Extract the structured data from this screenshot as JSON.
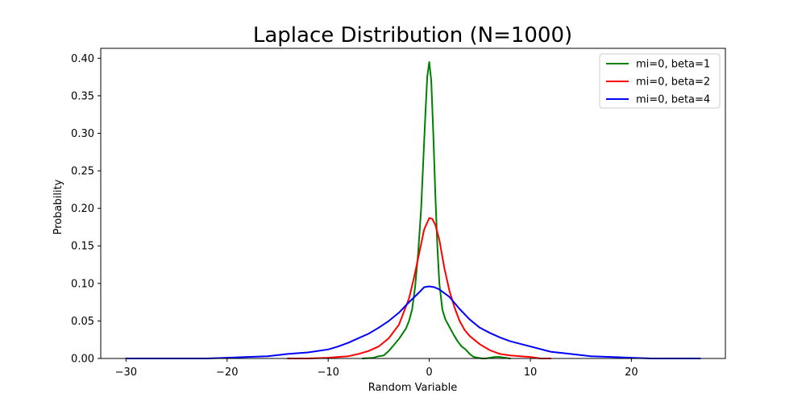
{
  "chart_data": {
    "type": "line",
    "title": "Laplace Distribution (N=1000)",
    "xlabel": "Random Variable",
    "ylabel": "Probability",
    "xlim": [
      -32.5,
      29.3
    ],
    "ylim": [
      0,
      0.4132
    ],
    "xticks": [
      -30,
      -20,
      -10,
      0,
      10,
      20
    ],
    "xtick_labels": [
      "−30",
      "−20",
      "−10",
      "0",
      "10",
      "20"
    ],
    "yticks": [
      0,
      0.05,
      0.1,
      0.15,
      0.2,
      0.25,
      0.3,
      0.35,
      0.4
    ],
    "ytick_labels": [
      "0.00",
      "0.05",
      "0.10",
      "0.15",
      "0.20",
      "0.25",
      "0.30",
      "0.35",
      "0.40"
    ],
    "legend_position": "top-right",
    "grid": false,
    "series": [
      {
        "name": "mi=0, beta=1",
        "color": "#008000",
        "x": [
          -6.6,
          -5.5,
          -5.0,
          -4.5,
          -4.0,
          -3.5,
          -3.0,
          -2.6,
          -2.3,
          -2.0,
          -1.7,
          -1.4,
          -1.1,
          -0.8,
          -0.6,
          -0.4,
          -0.2,
          0.0,
          0.2,
          0.4,
          0.6,
          0.8,
          1.0,
          1.3,
          1.6,
          2.0,
          2.4,
          2.8,
          3.2,
          3.6,
          4.0,
          4.4,
          4.8,
          5.2,
          5.6,
          6.0,
          6.5,
          7.0,
          7.5,
          8.0
        ],
        "y": [
          0.0,
          0.001,
          0.003,
          0.004,
          0.01,
          0.018,
          0.026,
          0.034,
          0.04,
          0.05,
          0.065,
          0.095,
          0.14,
          0.2,
          0.26,
          0.32,
          0.375,
          0.395,
          0.37,
          0.3,
          0.22,
          0.15,
          0.1,
          0.065,
          0.052,
          0.042,
          0.032,
          0.023,
          0.016,
          0.012,
          0.006,
          0.002,
          0.001,
          0.0,
          0.0,
          0.001,
          0.002,
          0.002,
          0.001,
          0.0
        ]
      },
      {
        "name": "mi=0, beta=2",
        "color": "#ff0000",
        "x": [
          -14.0,
          -12.0,
          -10.0,
          -9.0,
          -8.0,
          -7.0,
          -6.0,
          -5.0,
          -4.0,
          -3.0,
          -2.0,
          -1.5,
          -1.0,
          -0.5,
          0.0,
          0.3,
          0.6,
          1.0,
          1.5,
          2.0,
          2.5,
          3.0,
          3.5,
          4.0,
          5.0,
          6.0,
          7.0,
          8.0,
          9.0,
          10.0,
          11.0,
          12.0
        ],
        "y": [
          0.0,
          0.0,
          0.001,
          0.002,
          0.003,
          0.006,
          0.01,
          0.016,
          0.027,
          0.045,
          0.08,
          0.108,
          0.14,
          0.172,
          0.187,
          0.186,
          0.178,
          0.158,
          0.12,
          0.09,
          0.068,
          0.05,
          0.038,
          0.03,
          0.019,
          0.011,
          0.006,
          0.004,
          0.003,
          0.002,
          0.0,
          0.0
        ]
      },
      {
        "name": "mi=0, beta=4",
        "color": "#0000ff",
        "x": [
          -30.0,
          -26.0,
          -22.0,
          -20.0,
          -18.0,
          -16.0,
          -14.0,
          -12.0,
          -10.0,
          -9.0,
          -8.0,
          -7.0,
          -6.0,
          -5.0,
          -4.0,
          -3.0,
          -2.0,
          -1.0,
          -0.5,
          0.0,
          0.5,
          1.0,
          2.0,
          3.0,
          4.0,
          5.0,
          6.0,
          7.0,
          8.0,
          10.0,
          12.0,
          14.0,
          16.0,
          18.0,
          20.0,
          22.0,
          24.0,
          26.8
        ],
        "y": [
          0.0,
          0.0,
          0.0,
          0.001,
          0.002,
          0.003,
          0.006,
          0.008,
          0.012,
          0.016,
          0.021,
          0.027,
          0.033,
          0.041,
          0.05,
          0.061,
          0.075,
          0.088,
          0.095,
          0.096,
          0.095,
          0.092,
          0.082,
          0.066,
          0.052,
          0.041,
          0.034,
          0.028,
          0.023,
          0.016,
          0.009,
          0.006,
          0.003,
          0.002,
          0.001,
          0.0,
          0.0,
          0.0
        ]
      }
    ]
  }
}
